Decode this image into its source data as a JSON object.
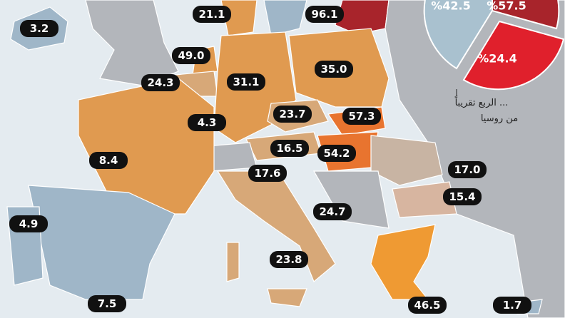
{
  "map_labels": [
    "3.2",
    "21.1",
    "96.1",
    "49.0",
    "24.3",
    "31.1",
    "35.0",
    "23.7",
    "57.3",
    "4.3",
    "16.5",
    "54.2",
    "8.4",
    "17.6",
    "17.0",
    "15.4",
    "24.7",
    "4.9",
    "23.8",
    "7.5",
    "46.5",
    "1.7"
  ],
  "pie_labels": [
    "%42.5",
    "%57.5",
    "%24.4"
  ],
  "note": {
    "line1": "... الربع تقريباً",
    "line2": "من روسيا"
  }
}
